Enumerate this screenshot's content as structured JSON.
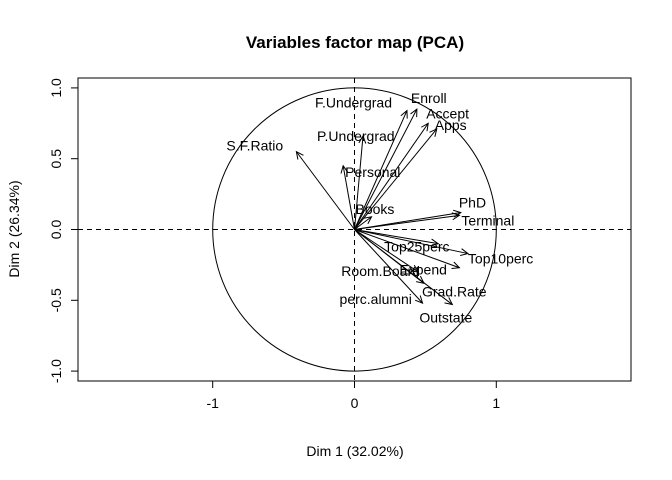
{
  "chart_data": {
    "type": "scatter",
    "title": "Variables factor map (PCA)",
    "xlabel": "Dim 1 (32.02%)",
    "ylabel": "Dim 2 (26.34%)",
    "xlim": [
      -1.95,
      1.95
    ],
    "ylim": [
      -1.07,
      1.07
    ],
    "xticks": [
      -1,
      0,
      1
    ],
    "yticks": [
      -1.0,
      -0.5,
      0.0,
      0.5,
      1.0
    ],
    "xtick_labels": [
      "-1",
      "0",
      "1"
    ],
    "ytick_labels": [
      "-1.0",
      "-0.5",
      "0.0",
      "0.5",
      "1.0"
    ],
    "unit_circle": true,
    "reference_lines": "dashed at x=0 and y=0",
    "grid": false,
    "series": [
      {
        "values": [
          {
            "label": "Apps",
            "x": 0.58,
            "y": 0.71
          },
          {
            "label": "Accept",
            "x": 0.52,
            "y": 0.75
          },
          {
            "label": "Enroll",
            "x": 0.44,
            "y": 0.85
          },
          {
            "label": "F.Undergrad",
            "x": 0.37,
            "y": 0.84
          },
          {
            "label": "P.Undergrad",
            "x": 0.06,
            "y": 0.66
          },
          {
            "label": "S.F.Ratio",
            "x": -0.41,
            "y": 0.55
          },
          {
            "label": "Personal",
            "x": -0.08,
            "y": 0.45
          },
          {
            "label": "Books",
            "x": 0.12,
            "y": 0.09
          },
          {
            "label": "PhD",
            "x": 0.75,
            "y": 0.12
          },
          {
            "label": "Terminal",
            "x": 0.74,
            "y": 0.1
          },
          {
            "label": "Top25perc",
            "x": 0.59,
            "y": -0.1
          },
          {
            "label": "Top10perc",
            "x": 0.8,
            "y": -0.17
          },
          {
            "label": "Expend",
            "x": 0.74,
            "y": -0.27
          },
          {
            "label": "Room.Board",
            "x": 0.45,
            "y": -0.3
          },
          {
            "label": "Grad.Rate",
            "x": 0.49,
            "y": -0.38
          },
          {
            "label": "perc.alumni",
            "x": 0.48,
            "y": -0.52
          },
          {
            "label": "Outstate",
            "x": 0.69,
            "y": -0.53
          }
        ]
      }
    ]
  }
}
